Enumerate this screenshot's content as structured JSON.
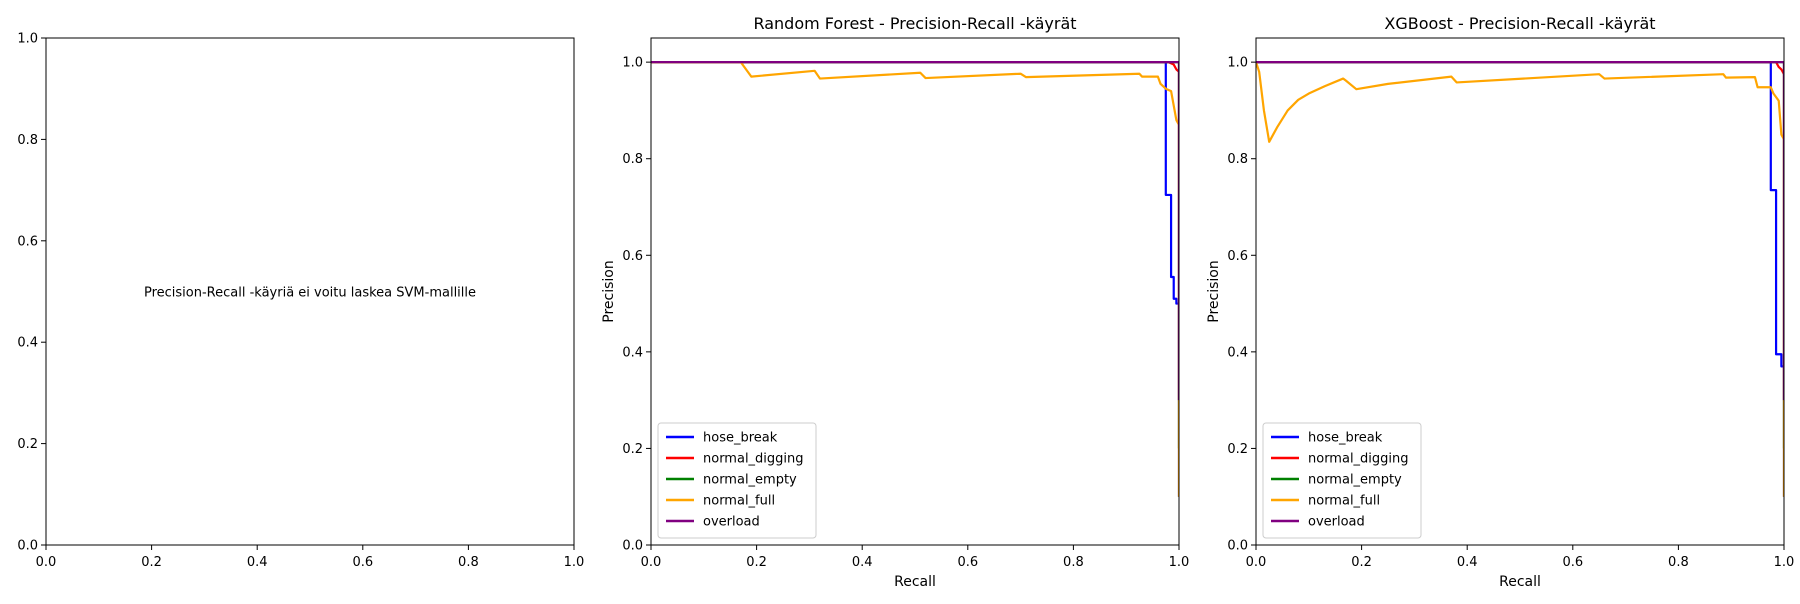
{
  "chart_data": [
    {
      "type": "line",
      "title": "",
      "xlabel": "",
      "ylabel": "",
      "xlim": [
        0,
        1
      ],
      "ylim": [
        0,
        1
      ],
      "xticks": [
        "0.0",
        "0.2",
        "0.4",
        "0.6",
        "0.8",
        "1.0"
      ],
      "yticks": [
        "0.0",
        "0.2",
        "0.4",
        "0.6",
        "0.8",
        "1.0"
      ],
      "message": "Precision-Recall -käyriä ei voitu laskea SVM-mallille",
      "legend": null,
      "series": []
    },
    {
      "type": "line",
      "title": "Random Forest - Precision-Recall -käyrät",
      "xlabel": "Recall",
      "ylabel": "Precision",
      "xlim": [
        0,
        1
      ],
      "ylim": [
        0,
        1.05
      ],
      "xticks": [
        "0.0",
        "0.2",
        "0.4",
        "0.6",
        "0.8",
        "1.0"
      ],
      "yticks": [
        "0.0",
        "0.2",
        "0.4",
        "0.6",
        "0.8",
        "1.0"
      ],
      "legend": "lower-left",
      "series": [
        {
          "name": "hose_break",
          "color": "#0000ff",
          "x": [
            0,
            0.97,
            0.975,
            0.975,
            0.985,
            0.985,
            0.99,
            0.99,
            0.995,
            0.995,
            1.0,
            1.0
          ],
          "y": [
            1.0,
            1.0,
            1.0,
            0.725,
            0.725,
            0.555,
            0.555,
            0.51,
            0.51,
            0.5,
            0.5,
            0.1
          ]
        },
        {
          "name": "normal_digging",
          "color": "#ff0000",
          "x": [
            0,
            0.98,
            0.99,
            0.995,
            1.0,
            1.0
          ],
          "y": [
            1.0,
            1.0,
            0.995,
            0.985,
            0.98,
            0.3
          ]
        },
        {
          "name": "normal_empty",
          "color": "#008000",
          "x": [
            0,
            1.0,
            1.0
          ],
          "y": [
            1.0,
            1.0,
            0.2
          ]
        },
        {
          "name": "normal_full",
          "color": "#ffa500",
          "x": [
            0,
            0.17,
            0.19,
            0.31,
            0.32,
            0.51,
            0.52,
            0.7,
            0.71,
            0.925,
            0.93,
            0.96,
            0.965,
            0.975,
            0.985,
            0.995,
            1.0,
            1.0
          ],
          "y": [
            1.0,
            1.0,
            0.97,
            0.982,
            0.966,
            0.978,
            0.967,
            0.976,
            0.969,
            0.976,
            0.97,
            0.97,
            0.955,
            0.945,
            0.94,
            0.88,
            0.87,
            0.1
          ]
        },
        {
          "name": "overload",
          "color": "#800080",
          "x": [
            0,
            1.0,
            1.0
          ],
          "y": [
            1.0,
            1.0,
            0.3
          ]
        }
      ]
    },
    {
      "type": "line",
      "title": "XGBoost - Precision-Recall -käyrät",
      "xlabel": "Recall",
      "ylabel": "Precision",
      "xlim": [
        0,
        1
      ],
      "ylim": [
        0,
        1.05
      ],
      "xticks": [
        "0.0",
        "0.2",
        "0.4",
        "0.6",
        "0.8",
        "1.0"
      ],
      "yticks": [
        "0.0",
        "0.2",
        "0.4",
        "0.6",
        "0.8",
        "1.0"
      ],
      "legend": "lower-left",
      "series": [
        {
          "name": "hose_break",
          "color": "#0000ff",
          "x": [
            0,
            0.975,
            0.975,
            0.985,
            0.985,
            0.995,
            0.995,
            1.0,
            1.0
          ],
          "y": [
            1.0,
            1.0,
            0.735,
            0.735,
            0.395,
            0.395,
            0.37,
            0.37,
            0.1
          ]
        },
        {
          "name": "normal_digging",
          "color": "#ff0000",
          "x": [
            0,
            0.985,
            0.99,
            0.995,
            1.0,
            1.0
          ],
          "y": [
            1.0,
            1.0,
            0.99,
            0.985,
            0.975,
            0.3
          ]
        },
        {
          "name": "normal_empty",
          "color": "#008000",
          "x": [
            0,
            1.0,
            1.0
          ],
          "y": [
            1.0,
            1.0,
            0.2
          ]
        },
        {
          "name": "normal_full",
          "color": "#ffa500",
          "x": [
            0,
            0.006,
            0.015,
            0.025,
            0.04,
            0.06,
            0.08,
            0.1,
            0.13,
            0.165,
            0.17,
            0.19,
            0.25,
            0.37,
            0.38,
            0.65,
            0.66,
            0.885,
            0.89,
            0.945,
            0.95,
            0.975,
            0.98,
            0.99,
            0.995,
            1.0,
            1.0
          ],
          "y": [
            1.0,
            0.98,
            0.9,
            0.835,
            0.865,
            0.9,
            0.922,
            0.935,
            0.95,
            0.966,
            0.962,
            0.944,
            0.955,
            0.97,
            0.958,
            0.975,
            0.966,
            0.975,
            0.968,
            0.969,
            0.948,
            0.948,
            0.935,
            0.92,
            0.85,
            0.84,
            0.1
          ]
        },
        {
          "name": "overload",
          "color": "#800080",
          "x": [
            0,
            1.0,
            1.0
          ],
          "y": [
            1.0,
            1.0,
            0.3
          ]
        }
      ]
    }
  ]
}
